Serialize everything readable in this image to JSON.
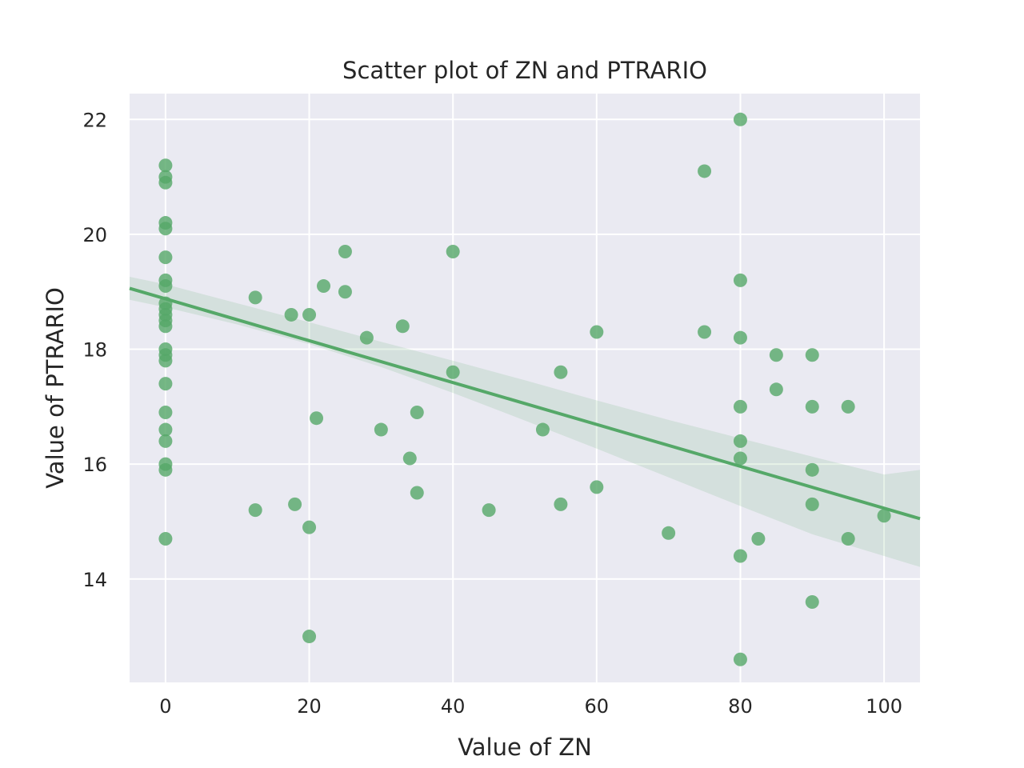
{
  "chart_data": {
    "type": "scatter",
    "title": "Scatter plot of ZN and PTRARIO",
    "xlabel": "Value of ZN",
    "ylabel": "Value of PTRARIO",
    "xlim": [
      -5,
      105
    ],
    "ylim": [
      12.2,
      22.45
    ],
    "xticks": [
      0,
      20,
      40,
      60,
      80,
      100
    ],
    "yticks": [
      14,
      16,
      18,
      20,
      22
    ],
    "grid": true,
    "colors": {
      "background": "#eaeaf2",
      "grid": "#ffffff",
      "points": "#55a868",
      "regression_line": "#55a868",
      "confidence_band": "#55a868"
    },
    "points": [
      {
        "x": 0,
        "y": 21.2
      },
      {
        "x": 0,
        "y": 21.0
      },
      {
        "x": 0,
        "y": 20.9
      },
      {
        "x": 0,
        "y": 20.2
      },
      {
        "x": 0,
        "y": 20.1
      },
      {
        "x": 0,
        "y": 19.6
      },
      {
        "x": 0,
        "y": 19.2
      },
      {
        "x": 0,
        "y": 19.1
      },
      {
        "x": 0,
        "y": 18.8
      },
      {
        "x": 0,
        "y": 18.7
      },
      {
        "x": 0,
        "y": 18.6
      },
      {
        "x": 0,
        "y": 18.5
      },
      {
        "x": 0,
        "y": 18.4
      },
      {
        "x": 0,
        "y": 18.0
      },
      {
        "x": 0,
        "y": 17.9
      },
      {
        "x": 0,
        "y": 17.8
      },
      {
        "x": 0,
        "y": 17.4
      },
      {
        "x": 0,
        "y": 16.9
      },
      {
        "x": 0,
        "y": 16.6
      },
      {
        "x": 0,
        "y": 16.4
      },
      {
        "x": 0,
        "y": 16.0
      },
      {
        "x": 0,
        "y": 15.9
      },
      {
        "x": 0,
        "y": 14.7
      },
      {
        "x": 12.5,
        "y": 18.9
      },
      {
        "x": 12.5,
        "y": 15.2
      },
      {
        "x": 17.5,
        "y": 18.6
      },
      {
        "x": 18,
        "y": 15.3
      },
      {
        "x": 20,
        "y": 18.6
      },
      {
        "x": 20,
        "y": 14.9
      },
      {
        "x": 20,
        "y": 13.0
      },
      {
        "x": 21,
        "y": 16.8
      },
      {
        "x": 22,
        "y": 19.1
      },
      {
        "x": 25,
        "y": 19.7
      },
      {
        "x": 25,
        "y": 19.0
      },
      {
        "x": 28,
        "y": 18.2
      },
      {
        "x": 30,
        "y": 16.6
      },
      {
        "x": 33,
        "y": 18.4
      },
      {
        "x": 34,
        "y": 16.1
      },
      {
        "x": 35,
        "y": 16.9
      },
      {
        "x": 35,
        "y": 15.5
      },
      {
        "x": 40,
        "y": 19.7
      },
      {
        "x": 40,
        "y": 17.6
      },
      {
        "x": 45,
        "y": 15.2
      },
      {
        "x": 52.5,
        "y": 16.6
      },
      {
        "x": 55,
        "y": 17.6
      },
      {
        "x": 55,
        "y": 15.3
      },
      {
        "x": 60,
        "y": 18.3
      },
      {
        "x": 60,
        "y": 15.6
      },
      {
        "x": 70,
        "y": 14.8
      },
      {
        "x": 75,
        "y": 21.1
      },
      {
        "x": 75,
        "y": 18.3
      },
      {
        "x": 80,
        "y": 22.0
      },
      {
        "x": 80,
        "y": 19.2
      },
      {
        "x": 80,
        "y": 18.2
      },
      {
        "x": 80,
        "y": 17.0
      },
      {
        "x": 80,
        "y": 16.4
      },
      {
        "x": 80,
        "y": 16.1
      },
      {
        "x": 80,
        "y": 14.4
      },
      {
        "x": 80,
        "y": 12.6
      },
      {
        "x": 82.5,
        "y": 14.7
      },
      {
        "x": 85,
        "y": 17.9
      },
      {
        "x": 85,
        "y": 17.3
      },
      {
        "x": 90,
        "y": 17.9
      },
      {
        "x": 90,
        "y": 17.0
      },
      {
        "x": 90,
        "y": 15.9
      },
      {
        "x": 90,
        "y": 15.3
      },
      {
        "x": 90,
        "y": 13.6
      },
      {
        "x": 95,
        "y": 17.0
      },
      {
        "x": 95,
        "y": 14.7
      },
      {
        "x": 100,
        "y": 15.1
      }
    ],
    "regression": {
      "x": [
        -5,
        105
      ],
      "y": [
        19.06,
        15.05
      ]
    },
    "confidence_band": {
      "x": [
        -5,
        0,
        10,
        20,
        30,
        40,
        50,
        60,
        70,
        80,
        90,
        100,
        105
      ],
      "lower": [
        18.86,
        18.73,
        18.43,
        18.09,
        17.69,
        17.24,
        16.76,
        16.27,
        15.77,
        15.27,
        14.78,
        14.4,
        14.21
      ],
      "upper": [
        19.26,
        19.13,
        18.8,
        18.47,
        18.13,
        17.8,
        17.46,
        17.11,
        16.77,
        16.45,
        16.13,
        15.82,
        15.9
      ]
    }
  }
}
